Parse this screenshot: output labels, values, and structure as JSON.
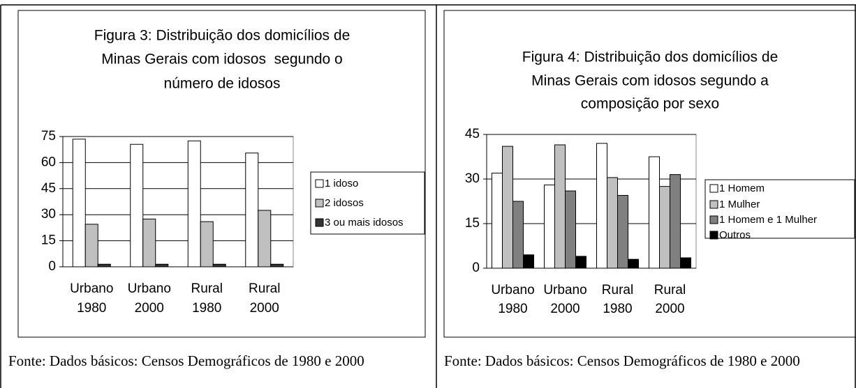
{
  "chart_data": [
    {
      "type": "bar",
      "title": [
        "Figura 3: Distribuição dos domicílios de",
        "Minas Gerais com idosos  segundo o",
        "número de idosos"
      ],
      "categories": [
        [
          "Urbano",
          "1980"
        ],
        [
          "Urbano",
          "2000"
        ],
        [
          "Rural",
          "1980"
        ],
        [
          "Rural",
          "2000"
        ]
      ],
      "series": [
        {
          "name": "1 idoso",
          "color": "#ffffff",
          "values": [
            73.5,
            70.5,
            72.5,
            65.5
          ]
        },
        {
          "name": "2 idosos",
          "color": "#c0c0c0",
          "values": [
            24.5,
            27.5,
            26,
            32.5
          ]
        },
        {
          "name": "3 ou mais idosos",
          "color": "#333333",
          "values": [
            1.5,
            1.5,
            1.5,
            1.5
          ]
        }
      ],
      "ylim": [
        0,
        75
      ],
      "yticks": [
        0,
        15,
        30,
        45,
        60,
        75
      ],
      "grid": true,
      "legend": "right",
      "caption": "Fonte: Dados básicos: Censos Demográficos de 1980 e 2000"
    },
    {
      "type": "bar",
      "title": [
        "Figura 4: Distribuição dos domicílios de",
        "Minas Gerais com idosos segundo a",
        "composição por sexo"
      ],
      "categories": [
        [
          "Urbano",
          "1980"
        ],
        [
          "Urbano",
          "2000"
        ],
        [
          "Rural",
          "1980"
        ],
        [
          "Rural",
          "2000"
        ]
      ],
      "series": [
        {
          "name": "1 Homem",
          "color": "#ffffff",
          "values": [
            32,
            28,
            42,
            37.5
          ]
        },
        {
          "name": "1 Mulher",
          "color": "#c0c0c0",
          "values": [
            41,
            41.5,
            30.5,
            27.5
          ]
        },
        {
          "name": "1 Homem e 1 Mulher",
          "color": "#808080",
          "values": [
            22.5,
            26,
            24.5,
            31.5
          ]
        },
        {
          "name": "Outros",
          "color": "#000000",
          "values": [
            4.5,
            4,
            3,
            3.5
          ]
        }
      ],
      "ylim": [
        0,
        45
      ],
      "yticks": [
        0,
        15,
        30,
        45
      ],
      "grid": true,
      "legend": "right",
      "caption": "Fonte: Dados básicos: Censos Demográficos de 1980 e 2000"
    }
  ]
}
